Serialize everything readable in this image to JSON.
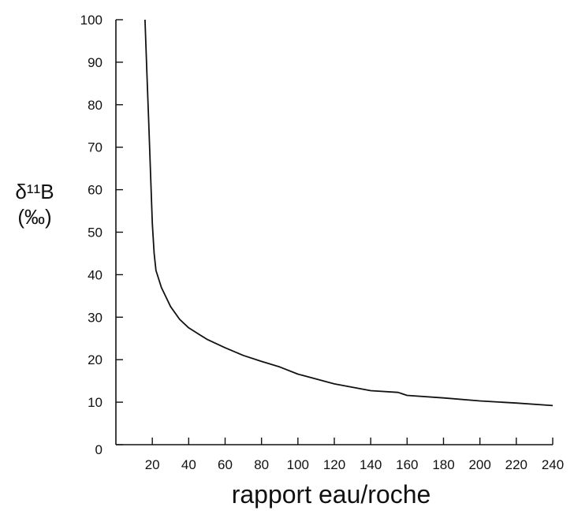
{
  "chart_data": {
    "type": "line",
    "title": "",
    "xlabel": "rapport eau/roche",
    "ylabel_line1": "δ¹¹B",
    "ylabel_line2": "(‰)",
    "xlim": [
      0,
      240
    ],
    "ylim": [
      0,
      100
    ],
    "x_ticks": [
      20,
      40,
      60,
      80,
      100,
      120,
      140,
      160,
      180,
      200,
      220,
      240
    ],
    "y_ticks": [
      0,
      10,
      20,
      30,
      40,
      50,
      60,
      70,
      80,
      90,
      100
    ],
    "grid": false,
    "legend": "none",
    "series": [
      {
        "x": [
          16,
          17,
          18,
          19,
          20,
          21,
          22,
          25,
          30,
          35,
          40,
          50,
          60,
          70,
          80,
          90,
          100,
          120,
          140,
          155,
          160,
          180,
          200,
          220,
          240
        ],
        "y": [
          100,
          88,
          76,
          64,
          52,
          45,
          41,
          37,
          32.5,
          29.5,
          27.5,
          24.8,
          22.8,
          21.0,
          19.6,
          18.3,
          16.6,
          14.3,
          12.7,
          12.3,
          11.6,
          11.0,
          10.3,
          9.8,
          9.2
        ]
      }
    ],
    "line_color": "#111111"
  }
}
